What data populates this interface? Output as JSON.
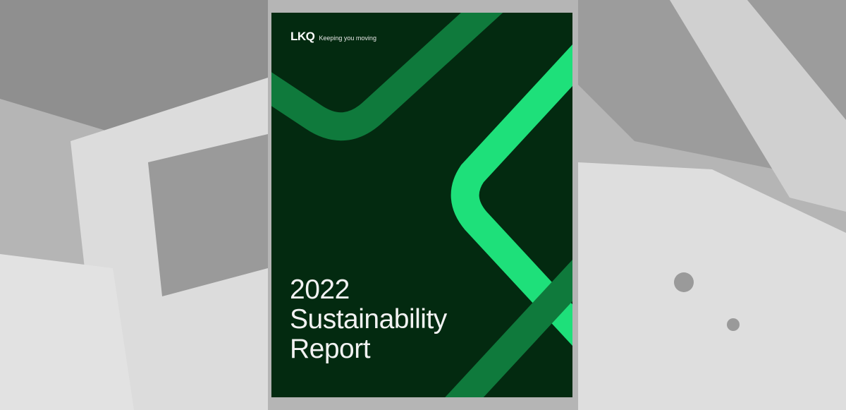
{
  "brand": {
    "logo": "LKQ",
    "tagline": "Keeping you moving"
  },
  "cover": {
    "title_lines": [
      "2022",
      "Sustainability",
      "Report"
    ]
  },
  "colors": {
    "cover_bg": "#032a10",
    "stripe_dark": "#0f7a3c",
    "stripe_bright": "#1ee07a",
    "background": "#b8b8b8"
  }
}
